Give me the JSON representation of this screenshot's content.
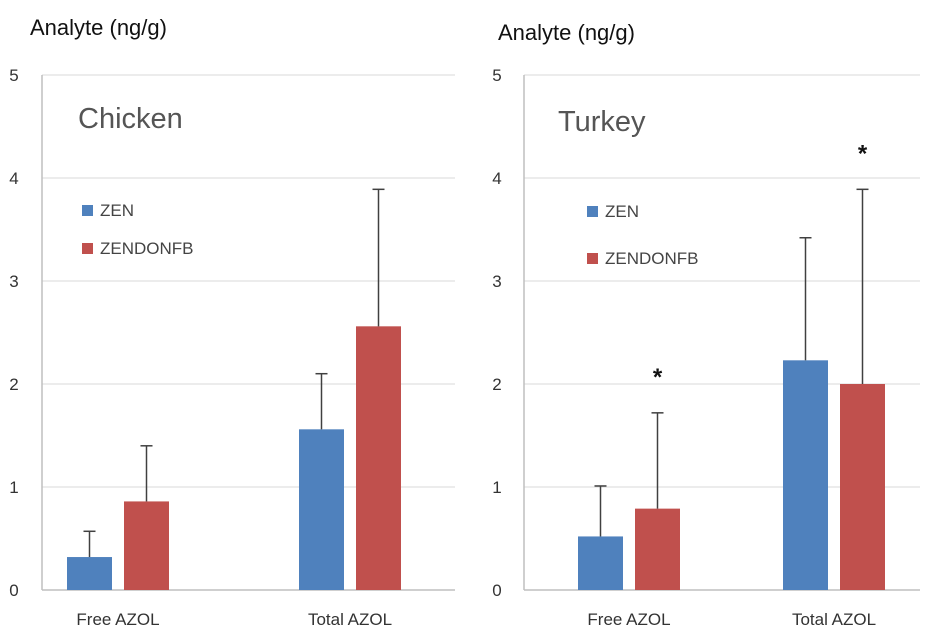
{
  "chart_data": [
    {
      "type": "bar",
      "title": "Chicken",
      "ylabel": "Analyte (ng/g)",
      "xlabel": "",
      "ylim": [
        0,
        5
      ],
      "yticks": [
        0,
        1,
        2,
        3,
        4,
        5
      ],
      "grid": true,
      "legend": "upper-left",
      "categories": [
        "Free AZOL",
        "Total AZOL"
      ],
      "series": [
        {
          "name": "ZEN",
          "color": "#4f81bd",
          "values": [
            0.32,
            1.56
          ],
          "errors": [
            0.25,
            0.54
          ]
        },
        {
          "name": "ZENDONFB",
          "color": "#c0504d",
          "values": [
            0.86,
            2.56
          ],
          "errors": [
            0.54,
            1.33
          ]
        }
      ],
      "annotations": []
    },
    {
      "type": "bar",
      "title": "Turkey",
      "ylabel": "Analyte (ng/g)",
      "xlabel": "",
      "ylim": [
        0,
        5
      ],
      "yticks": [
        0,
        1,
        2,
        3,
        4,
        5
      ],
      "grid": true,
      "legend": "upper-left",
      "categories": [
        "Free AZOL",
        "Total AZOL"
      ],
      "series": [
        {
          "name": "ZEN",
          "color": "#4f81bd",
          "values": [
            0.52,
            2.23
          ],
          "errors": [
            0.49,
            1.19
          ]
        },
        {
          "name": "ZENDONFB",
          "color": "#c0504d",
          "values": [
            0.79,
            2.0
          ],
          "errors": [
            0.93,
            1.89
          ]
        }
      ],
      "annotations": [
        {
          "text": "*",
          "category": "Free AZOL",
          "series": "ZENDONFB"
        },
        {
          "text": "*",
          "category": "Total AZOL",
          "series": "ZENDONFB"
        }
      ]
    }
  ]
}
